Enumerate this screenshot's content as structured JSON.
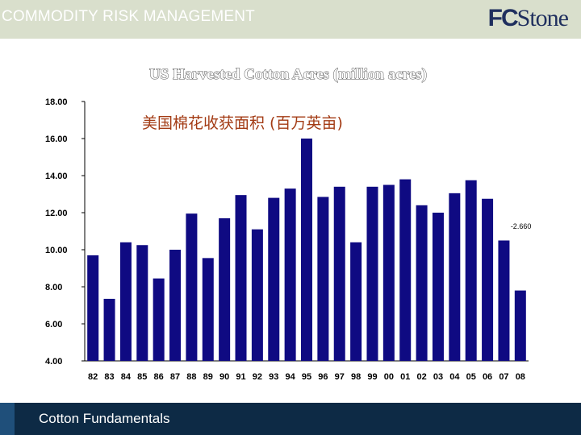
{
  "header": {
    "title": "COMMODITY RISK MANAGEMENT",
    "logo_fc": "FC",
    "logo_stone": "Stone"
  },
  "footer": {
    "label": "Cotton Fundamentals"
  },
  "colors": {
    "header_bg": "#d9dfcc",
    "bar": "#0f0a82",
    "footer_bg": "#0d2a45",
    "subtitle": "#a33b14"
  },
  "chart_data": {
    "type": "bar",
    "title": "US Harvested Cotton Acres (million acres)",
    "subtitle": "美国棉花收获面积 (百万英亩)",
    "xlabel": "",
    "ylabel": "",
    "ylim": [
      4,
      18
    ],
    "yticks": [
      "4.00",
      "6.00",
      "8.00",
      "10.00",
      "12.00",
      "14.00",
      "16.00",
      "18.00"
    ],
    "categories": [
      "82",
      "83",
      "84",
      "85",
      "86",
      "87",
      "88",
      "89",
      "90",
      "91",
      "92",
      "93",
      "94",
      "95",
      "96",
      "97",
      "98",
      "99",
      "00",
      "01",
      "02",
      "03",
      "04",
      "05",
      "06",
      "07",
      "08"
    ],
    "values": [
      9.7,
      7.35,
      10.4,
      10.25,
      8.45,
      10.0,
      11.95,
      9.55,
      11.7,
      12.95,
      11.1,
      12.8,
      13.3,
      16.0,
      12.85,
      13.4,
      10.4,
      13.4,
      13.5,
      13.8,
      12.4,
      12.0,
      13.05,
      13.75,
      12.75,
      10.5,
      7.8
    ],
    "annotations": [
      {
        "text": "-2.660",
        "category": "08"
      }
    ],
    "grid": false,
    "legend": "none"
  }
}
